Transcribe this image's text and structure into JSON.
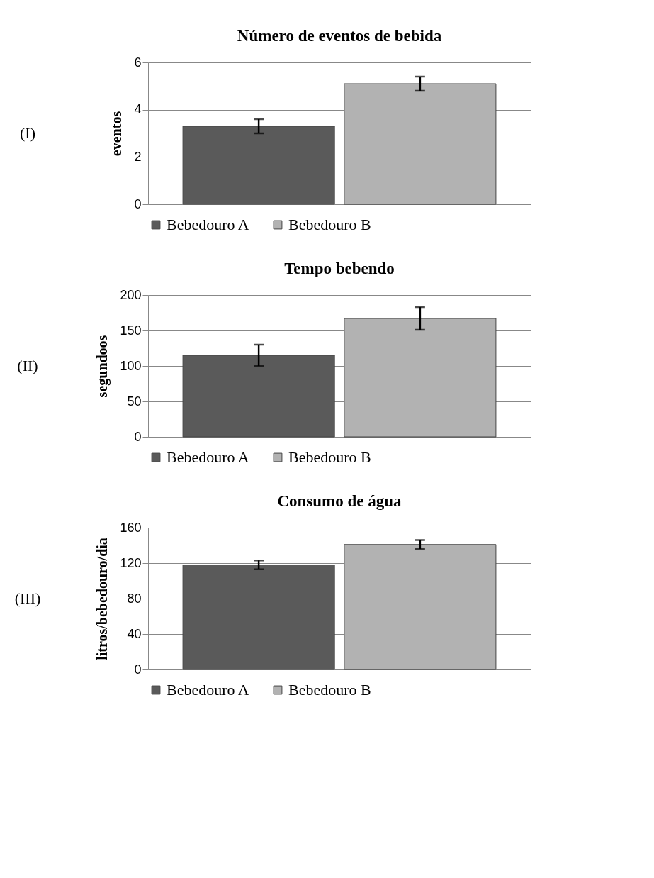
{
  "chart_data": [
    {
      "type": "bar",
      "title": "Número de eventos de bebida",
      "ylabel": "eventos",
      "annotations": [
        "(I)"
      ],
      "categories": [
        null
      ],
      "ylim": [
        0,
        6
      ],
      "yticks": [
        0,
        2,
        4,
        6
      ],
      "grid": "y",
      "legend": "bottom",
      "tick_labels": "y",
      "series": [
        {
          "name": "Bebedouro A",
          "color": "#5a5a5a",
          "values": [
            3.3
          ],
          "errors": [
            0.3
          ]
        },
        {
          "name": "Bebedouro B",
          "color": "#b2b2b2",
          "values": [
            5.1
          ],
          "errors": [
            0.3
          ]
        }
      ]
    },
    {
      "type": "bar",
      "title": "Tempo bebendo",
      "ylabel": "segundoos",
      "annotations": [
        "(II)"
      ],
      "categories": [
        null
      ],
      "ylim": [
        0,
        200
      ],
      "yticks": [
        0,
        50,
        100,
        150,
        200
      ],
      "grid": "y",
      "legend": "bottom",
      "tick_labels": "y",
      "series": [
        {
          "name": "Bebedouro A",
          "color": "#5a5a5a",
          "values": [
            115
          ],
          "errors": [
            15
          ]
        },
        {
          "name": "Bebedouro B",
          "color": "#b2b2b2",
          "values": [
            167
          ],
          "errors": [
            16
          ]
        }
      ]
    },
    {
      "type": "bar",
      "title": "Consumo de água",
      "ylabel": "litros/bebedouro/dia",
      "annotations": [
        "(III)"
      ],
      "categories": [
        null
      ],
      "ylim": [
        0,
        160
      ],
      "yticks": [
        0,
        40,
        80,
        120,
        160
      ],
      "grid": "y",
      "legend": "bottom",
      "tick_labels": "y",
      "series": [
        {
          "name": "Bebedouro A",
          "color": "#5a5a5a",
          "values": [
            118
          ],
          "errors": [
            5
          ]
        },
        {
          "name": "Bebedouro B",
          "color": "#b2b2b2",
          "values": [
            141
          ],
          "errors": [
            5
          ]
        }
      ]
    }
  ]
}
